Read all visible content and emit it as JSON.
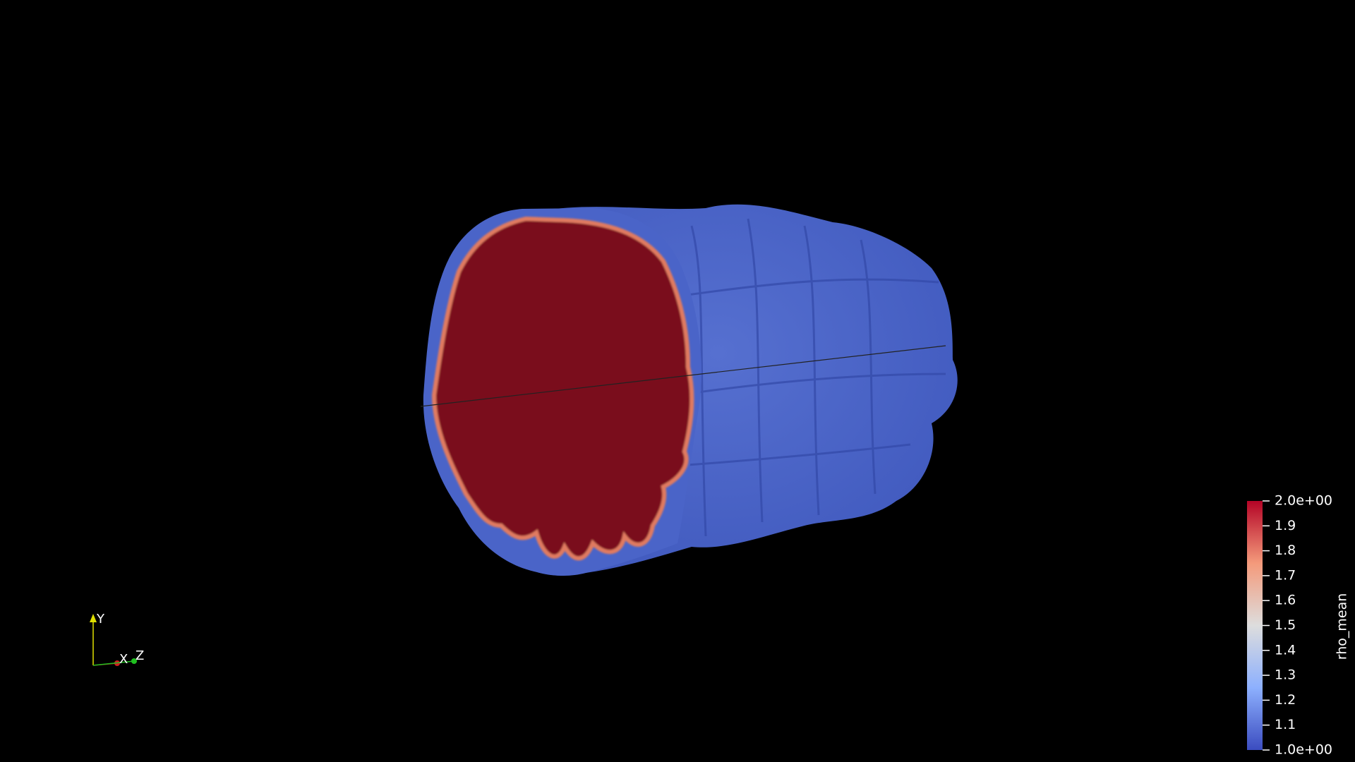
{
  "colorbar": {
    "title": "rho_mean",
    "ticks": [
      {
        "value": 2,
        "label": "2.0e+00"
      },
      1.9,
      1.8,
      1.7,
      1.6,
      1.5,
      1.4,
      1.3,
      1.2,
      1.1,
      {
        "value": 1,
        "label": "1.0e+00"
      }
    ]
  },
  "axes": {
    "y": "Y",
    "x": "X",
    "z": "Z"
  }
}
